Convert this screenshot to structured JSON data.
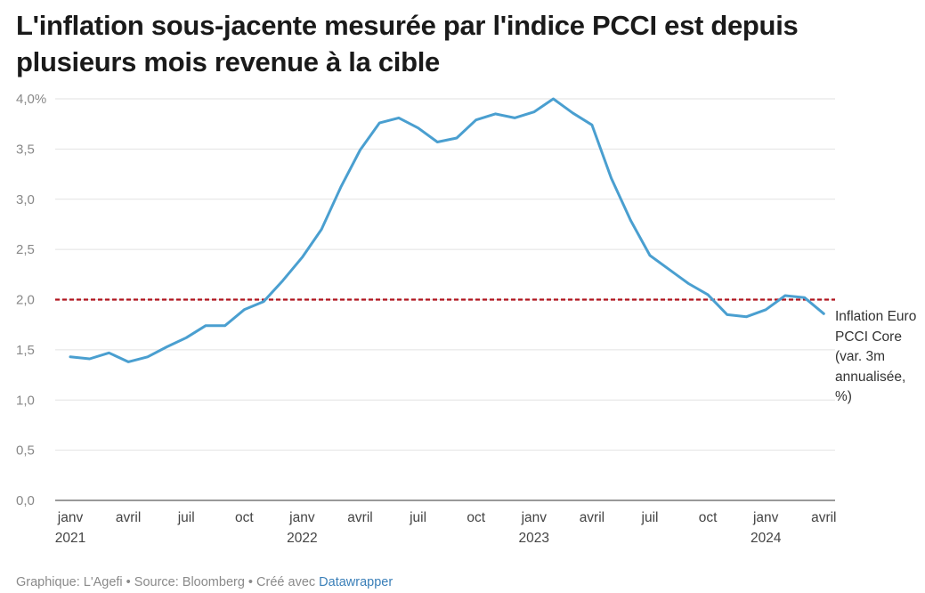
{
  "title": "L'inflation sous-jacente mesurée par l'indice PCCI est depuis plusieurs mois revenue à la cible",
  "footer": {
    "prefix": "Graphique: L'Agefi • Source: Bloomberg • Créé avec ",
    "link": "Datawrapper"
  },
  "chart_data": {
    "type": "line",
    "title": "L'inflation sous-jacente mesurée par l'indice PCCI est depuis plusieurs mois revenue à la cible",
    "ylim": [
      0,
      4
    ],
    "yticks": [
      {
        "value": 4.0,
        "label": "4,0%"
      },
      {
        "value": 3.5,
        "label": "3,5"
      },
      {
        "value": 3.0,
        "label": "3,0"
      },
      {
        "value": 2.5,
        "label": "2,5"
      },
      {
        "value": 2.0,
        "label": "2,0"
      },
      {
        "value": 1.5,
        "label": "1,5"
      },
      {
        "value": 1.0,
        "label": "1,0"
      },
      {
        "value": 0.5,
        "label": "0,5"
      },
      {
        "value": 0.0,
        "label": "0,0"
      }
    ],
    "xticks": [
      {
        "date": "2021-01",
        "label": "janv",
        "year": "2021"
      },
      {
        "date": "2021-04",
        "label": "avril",
        "year": ""
      },
      {
        "date": "2021-07",
        "label": "juil",
        "year": ""
      },
      {
        "date": "2021-10",
        "label": "oct",
        "year": ""
      },
      {
        "date": "2022-01",
        "label": "janv",
        "year": "2022"
      },
      {
        "date": "2022-04",
        "label": "avril",
        "year": ""
      },
      {
        "date": "2022-07",
        "label": "juil",
        "year": ""
      },
      {
        "date": "2022-10",
        "label": "oct",
        "year": ""
      },
      {
        "date": "2023-01",
        "label": "janv",
        "year": "2023"
      },
      {
        "date": "2023-04",
        "label": "avril",
        "year": ""
      },
      {
        "date": "2023-07",
        "label": "juil",
        "year": ""
      },
      {
        "date": "2023-10",
        "label": "oct",
        "year": ""
      },
      {
        "date": "2024-01",
        "label": "janv",
        "year": "2024"
      },
      {
        "date": "2024-04",
        "label": "avril",
        "year": ""
      }
    ],
    "reference_line": {
      "value": 2.0,
      "color": "#b0141e",
      "style": "dashed"
    },
    "series": [
      {
        "name": "Inflation Euro PCCI Core (var. 3m annualisée, %)",
        "color": "#4a9fd0",
        "x": [
          "2021-01",
          "2021-02",
          "2021-03",
          "2021-04",
          "2021-05",
          "2021-06",
          "2021-07",
          "2021-08",
          "2021-09",
          "2021-10",
          "2021-11",
          "2021-12",
          "2022-01",
          "2022-02",
          "2022-03",
          "2022-04",
          "2022-05",
          "2022-06",
          "2022-07",
          "2022-08",
          "2022-09",
          "2022-10",
          "2022-11",
          "2022-12",
          "2023-01",
          "2023-02",
          "2023-03",
          "2023-04",
          "2023-05",
          "2023-06",
          "2023-07",
          "2023-08",
          "2023-09",
          "2023-10",
          "2023-11",
          "2023-12",
          "2024-01",
          "2024-02",
          "2024-03",
          "2024-04"
        ],
        "values": [
          1.43,
          1.41,
          1.47,
          1.38,
          1.43,
          1.53,
          1.62,
          1.74,
          1.74,
          1.9,
          1.98,
          2.19,
          2.42,
          2.7,
          3.12,
          3.49,
          3.76,
          3.81,
          3.71,
          3.57,
          3.61,
          3.79,
          3.85,
          3.81,
          3.87,
          4.0,
          3.86,
          3.74,
          3.21,
          2.79,
          2.44,
          2.3,
          2.16,
          2.05,
          1.85,
          1.83,
          1.9,
          2.04,
          2.02,
          1.86
        ]
      }
    ],
    "grid": true
  }
}
